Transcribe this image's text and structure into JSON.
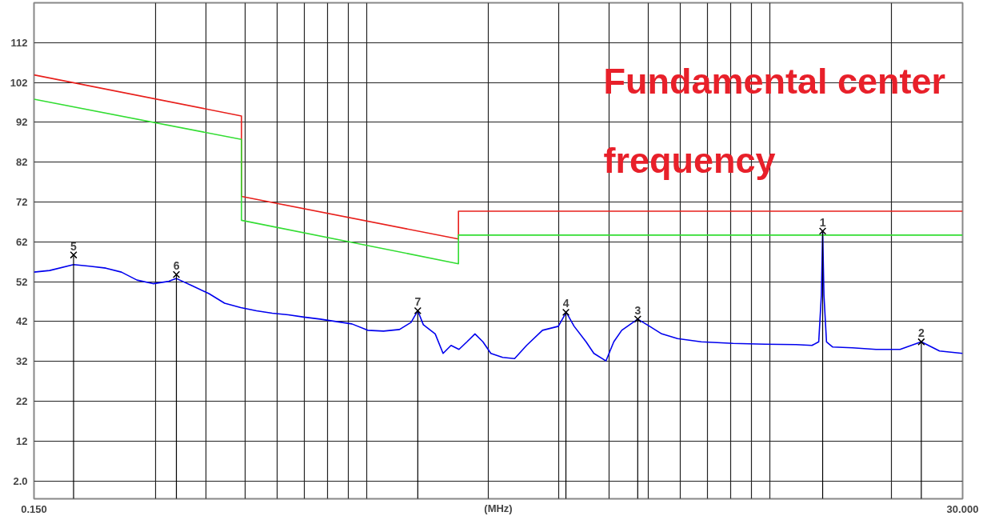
{
  "chart_data": {
    "type": "line",
    "xlabel": "(MHz)",
    "log": "x",
    "grid": true,
    "xlim": [
      0.15,
      30
    ],
    "ylim": [
      -2.5,
      122
    ],
    "xticks": [
      {
        "value": 0.15,
        "label": "0.150"
      },
      {
        "value": 0.3,
        "label": null
      },
      {
        "value": 0.4,
        "label": null
      },
      {
        "value": 0.5,
        "label": null
      },
      {
        "value": 0.6,
        "label": null
      },
      {
        "value": 0.7,
        "label": null
      },
      {
        "value": 0.8,
        "label": null
      },
      {
        "value": 0.9,
        "label": null
      },
      {
        "value": 1,
        "label": null
      },
      {
        "value": 2,
        "label": null
      },
      {
        "value": 3,
        "label": null
      },
      {
        "value": 4,
        "label": null
      },
      {
        "value": 5,
        "label": null
      },
      {
        "value": 6,
        "label": null
      },
      {
        "value": 7,
        "label": null
      },
      {
        "value": 8,
        "label": null
      },
      {
        "value": 9,
        "label": null
      },
      {
        "value": 10,
        "label": null
      },
      {
        "value": 20,
        "label": null
      },
      {
        "value": 30,
        "label": "30.000"
      }
    ],
    "yticks": [
      {
        "value": 2,
        "label": "2.0"
      },
      12,
      22,
      32,
      42,
      52,
      62,
      72,
      82,
      92,
      102,
      112
    ],
    "annotations": [
      "Fundamental center frequency",
      {
        "text": "1",
        "x": 13.5,
        "y": 64.7
      },
      {
        "text": "2",
        "x": 23.7,
        "y": 36.9
      },
      {
        "text": "3",
        "x": 4.7,
        "y": 42.6
      },
      {
        "text": "4",
        "x": 3.12,
        "y": 44.3
      },
      {
        "text": "5",
        "x": 0.188,
        "y": 58.7
      },
      {
        "text": "6",
        "x": 0.338,
        "y": 53.8
      },
      {
        "text": "7",
        "x": 1.34,
        "y": 44.7
      }
    ],
    "series": [
      {
        "color": "#0000ee",
        "x": [
          0.15,
          0.164,
          0.188,
          0.206,
          0.226,
          0.247,
          0.27,
          0.296,
          0.324,
          0.338,
          0.371,
          0.407,
          0.445,
          0.488,
          0.534,
          0.584,
          0.64,
          0.7,
          0.767,
          0.84,
          0.92,
          1.007,
          1.102,
          1.207,
          1.29,
          1.34,
          1.383,
          1.48,
          1.548,
          1.62,
          1.695,
          1.774,
          1.857,
          1.943,
          2.033,
          2.175,
          2.328,
          2.493,
          2.729,
          2.988,
          3.126,
          3.27,
          3.5,
          3.66,
          3.92,
          4.1,
          4.29,
          4.49,
          4.7,
          5.03,
          5.39,
          5.9,
          6.75,
          8.1,
          9.71,
          11.6,
          12.7,
          13.2,
          13.4,
          13.5,
          13.6,
          13.8,
          14.3,
          16.0,
          18.3,
          21.0,
          23.7,
          26.3,
          30.0
        ],
        "values": [
          54.4,
          54.8,
          56.3,
          55.9,
          55.4,
          54.4,
          52.4,
          51.5,
          52.1,
          52.8,
          50.9,
          49.0,
          46.6,
          45.5,
          44.7,
          44.1,
          43.7,
          43.1,
          42.6,
          42.0,
          41.4,
          39.8,
          39.6,
          40.0,
          41.8,
          44.7,
          41.2,
          38.9,
          34.0,
          36.0,
          35.0,
          36.9,
          38.9,
          36.9,
          34.0,
          33.0,
          32.7,
          36.0,
          39.8,
          40.8,
          44.3,
          40.8,
          36.9,
          34.0,
          32.1,
          36.9,
          39.8,
          41.2,
          42.6,
          40.8,
          38.9,
          37.7,
          36.9,
          36.5,
          36.3,
          36.2,
          36.0,
          36.9,
          48.6,
          64.7,
          48.6,
          36.9,
          35.6,
          35.4,
          35.0,
          35.0,
          36.9,
          34.6,
          34.0
        ]
      },
      {
        "color": "#e8201c",
        "x": [
          0.15,
          0.49,
          0.49,
          1.69,
          1.69,
          30
        ],
        "values": [
          103.9,
          93.6,
          73.4,
          62.7,
          69.7,
          69.7
        ]
      },
      {
        "color": "#33dd33",
        "x": [
          0.15,
          0.49,
          0.49,
          1.69,
          1.69,
          30
        ],
        "values": [
          97.8,
          87.7,
          67.4,
          56.5,
          63.7,
          63.7
        ]
      },
      {
        "type": "lollipop",
        "color": "#000000",
        "marker": "cross",
        "x": [
          13.5,
          23.7,
          4.7,
          3.12,
          0.188,
          0.338,
          1.34
        ],
        "values": [
          64.7,
          36.9,
          42.6,
          44.3,
          58.7,
          53.8,
          44.7
        ]
      }
    ]
  }
}
